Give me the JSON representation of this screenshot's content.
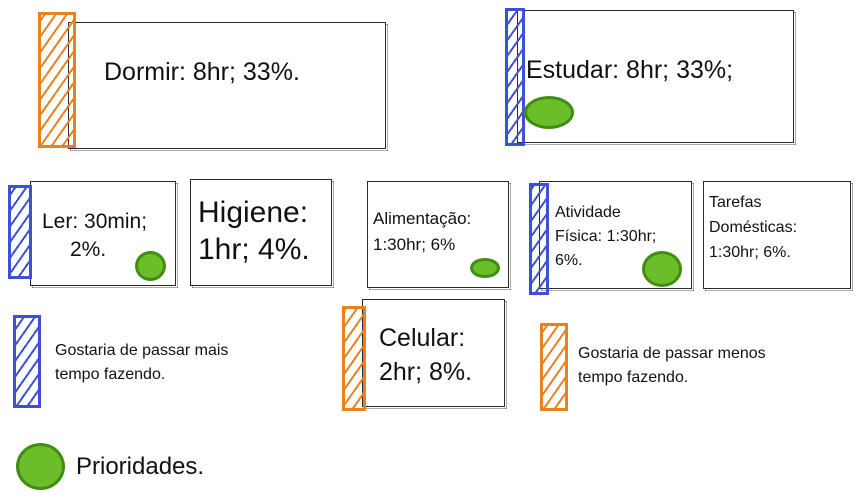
{
  "activities": {
    "dormir": "Dormir: 8hr; 33%.",
    "estudar": "Estudar: 8hr; 33%;",
    "ler_l1": "Ler: 30min;",
    "ler_l2": "2%.",
    "higiene_l1": "Higiene:",
    "higiene_l2": "1hr; 4%.",
    "alimentacao_l1": "Alimentação:",
    "alimentacao_l2": "1:30hr; 6%",
    "atividade_l1": "Atividade",
    "atividade_l2": "Física: 1:30hr;",
    "atividade_l3": "6%.",
    "tarefas_l1": "Tarefas",
    "tarefas_l2": "Domésticas:",
    "tarefas_l3": "1:30hr; 6%.",
    "celular_l1": "Celular:",
    "celular_l2": "2hr; 8%."
  },
  "legend": {
    "blue_l1": "Gostaria de passar mais",
    "blue_l2": "tempo fazendo.",
    "orange_l1": "Gostaria de passar menos",
    "orange_l2": "tempo fazendo.",
    "priority": "Prioridades."
  },
  "colors": {
    "want_more": "#3d50d8",
    "want_less": "#e8821e",
    "priority": "#6cbd2a"
  }
}
